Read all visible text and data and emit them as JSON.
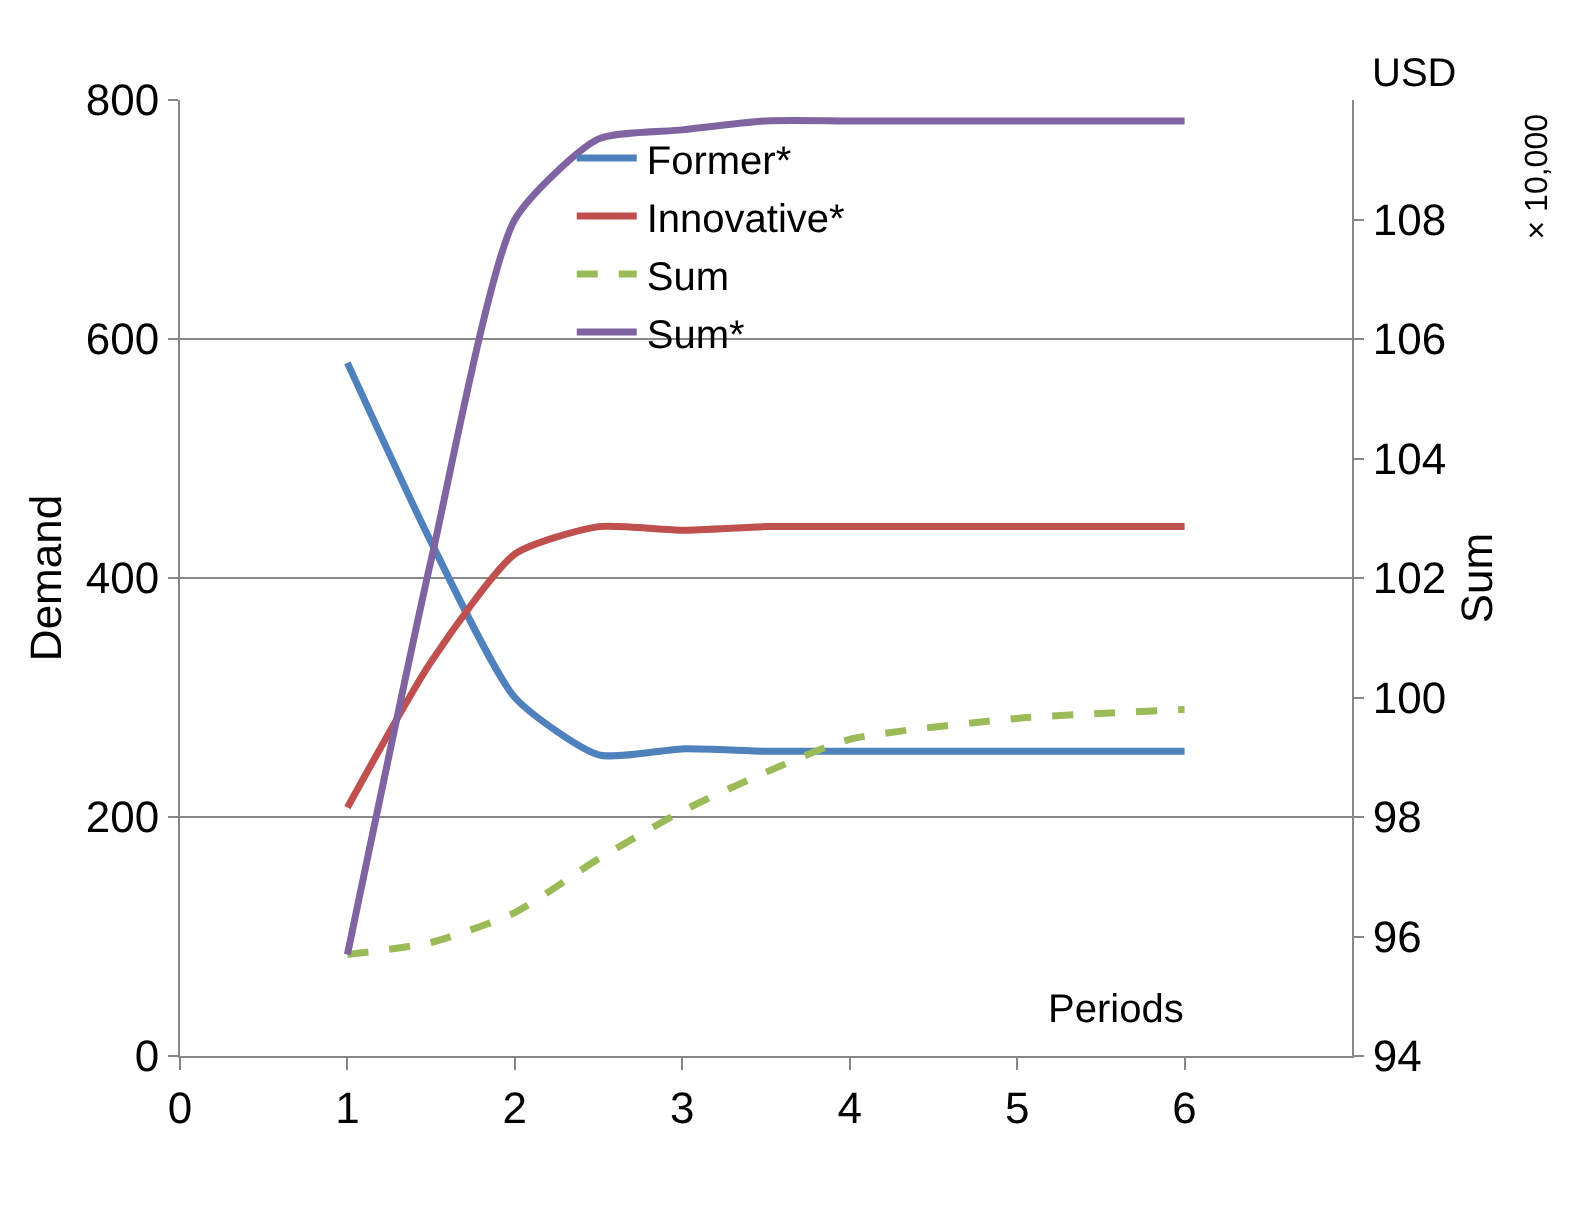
{
  "chart_data": {
    "type": "line",
    "xlabel": null,
    "ylabel": "Demand",
    "y2label": "Sum",
    "annotations": [
      "USD",
      "Periods",
      "× 10,000"
    ],
    "x": [
      1,
      1.5,
      2,
      2.5,
      3,
      3.5,
      4,
      5,
      6
    ],
    "series": [
      {
        "name": "Former*",
        "color": "#4f81bd",
        "values": [
          580,
          430,
          300,
          252,
          257,
          255,
          255,
          255,
          255
        ]
      },
      {
        "name": "Innovative*",
        "color": "#c0504d",
        "values": [
          208,
          330,
          420,
          443,
          440,
          443,
          443,
          443,
          443
        ]
      },
      {
        "name": "Sum",
        "color": "#9bbb59",
        "axis": "y2",
        "line_style": "dashed",
        "values": [
          95.7,
          95.9,
          96.4,
          97.3,
          98.1,
          98.75,
          99.3,
          99.65,
          99.8
        ]
      },
      {
        "name": "Sum*",
        "color": "#8064a2",
        "axis": "y2",
        "values": [
          95.7,
          102.3,
          108.0,
          109.35,
          109.5,
          109.65,
          109.65,
          109.65,
          109.65
        ]
      }
    ],
    "xlim": [
      0,
      7
    ],
    "xticks": [
      0,
      1,
      2,
      3,
      4,
      5,
      6
    ],
    "ylim": [
      0,
      800
    ],
    "yticks": [
      0,
      200,
      400,
      600,
      800
    ],
    "y2lim": [
      94,
      110
    ],
    "y2ticks": [
      94,
      96,
      98,
      100,
      102,
      104,
      106,
      108
    ],
    "grid": "y",
    "legend": "top",
    "marker": "none",
    "line_style": "solid"
  }
}
